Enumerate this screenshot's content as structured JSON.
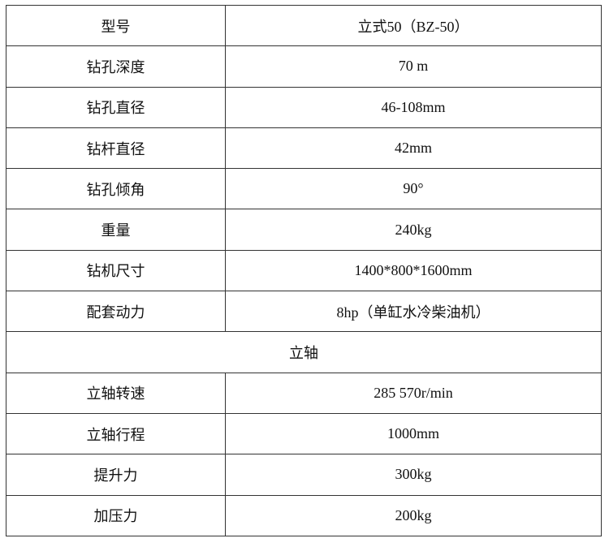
{
  "rows": [
    {
      "label": "型号",
      "value": "立式50（BZ-50）"
    },
    {
      "label": "钻孔深度",
      "value": "70 m"
    },
    {
      "label": "钻孔直径",
      "value": "46-108mm"
    },
    {
      "label": "钻杆直径",
      "value": "42mm"
    },
    {
      "label": "钻孔倾角",
      "value": "90°"
    },
    {
      "label": "重量",
      "value": "240kg"
    },
    {
      "label": "钻机尺寸",
      "value": "1400*800*1600mm"
    },
    {
      "label": "配套动力",
      "value": "8hp（单缸水冷柴油机）"
    }
  ],
  "section": "立轴",
  "rows2": [
    {
      "label": "立轴转速",
      "value": "285 570r/min"
    },
    {
      "label": "立轴行程",
      "value": "1000mm"
    },
    {
      "label": "提升力",
      "value": "300kg"
    },
    {
      "label": "加压力",
      "value": "200kg"
    }
  ]
}
